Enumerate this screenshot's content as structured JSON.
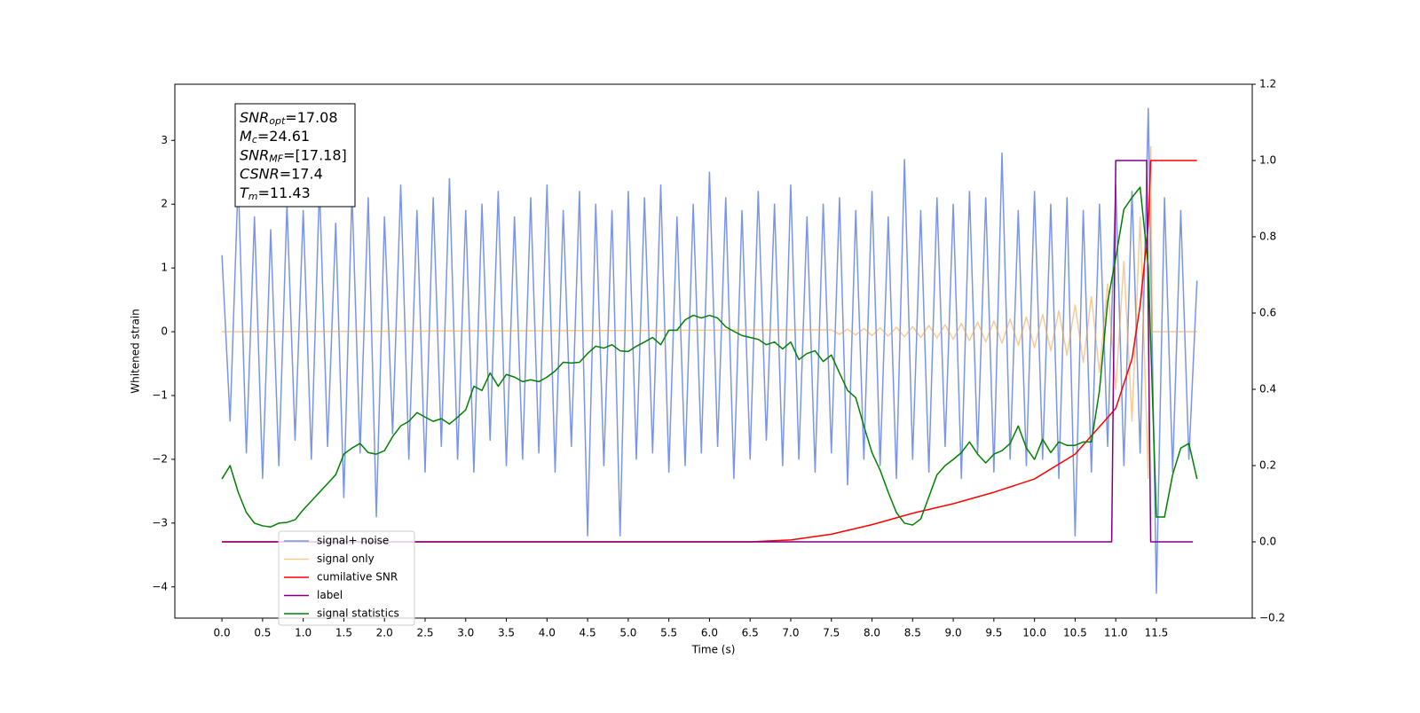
{
  "chart_data": {
    "type": "line",
    "xlabel": "Time (s)",
    "ylabel": "Whitened strain",
    "xlim": [
      -0.58,
      12.68
    ],
    "ylim": [
      -4.49,
      3.88
    ],
    "y2lim": [
      -0.2,
      1.2
    ],
    "xticks": [
      {
        "value": 0,
        "label": "0.0"
      },
      0.5,
      {
        "value": 1,
        "label": "1.0"
      },
      1.5,
      {
        "value": 2,
        "label": "2.0"
      },
      2.5,
      {
        "value": 3,
        "label": "3.0"
      },
      3.5,
      {
        "value": 4,
        "label": "4.0"
      },
      4.5,
      {
        "value": 5,
        "label": "5.0"
      },
      5.5,
      {
        "value": 6,
        "label": "6.0"
      },
      6.5,
      {
        "value": 7,
        "label": "7.0"
      },
      7.5,
      {
        "value": 8,
        "label": "8.0"
      },
      8.5,
      {
        "value": 9,
        "label": "9.0"
      },
      9.5,
      {
        "value": 10,
        "label": "10.0"
      },
      10.5,
      {
        "value": 11,
        "label": "11.0"
      },
      11.5
    ],
    "yticks": [
      {
        "value": -4,
        "label": "−4"
      },
      {
        "value": -3,
        "label": "−3"
      },
      {
        "value": -2,
        "label": "−2"
      },
      {
        "value": -1,
        "label": "−1"
      },
      0,
      1,
      2,
      3
    ],
    "y2ticks": [
      {
        "value": -0.2,
        "label": "−0.2"
      },
      {
        "value": 0,
        "label": "0.0"
      },
      0.2,
      0.4,
      0.6,
      0.8,
      {
        "value": 1,
        "label": "1.0"
      },
      1.2
    ],
    "annotation": [
      {
        "symbol": "SNR",
        "subscript": "opt",
        "value": "=17.08"
      },
      {
        "symbol": "M",
        "subscript": "c",
        "value": "=24.61"
      },
      {
        "symbol": "SNR",
        "subscript": "MF",
        "value": "=[17.18]"
      },
      {
        "symbol": "CSNR",
        "value": "=17.4"
      },
      {
        "symbol": "T",
        "subscript": "m",
        "value": "=11.43"
      }
    ],
    "legend": "lower left",
    "x": [
      0,
      0.1,
      0.2,
      0.3,
      0.4,
      0.5,
      0.6,
      0.7,
      0.8,
      0.9,
      1,
      1.1,
      1.2,
      1.3,
      1.4,
      1.5,
      1.6,
      1.7,
      1.8,
      1.9,
      2,
      2.1,
      2.2,
      2.3,
      2.4,
      2.5,
      2.6,
      2.7,
      2.8,
      2.9,
      3,
      3.1,
      3.2,
      3.3,
      3.4,
      3.5,
      3.6,
      3.7,
      3.8,
      3.9,
      4,
      4.1,
      4.2,
      4.3,
      4.4,
      4.5,
      4.6,
      4.7,
      4.8,
      4.9,
      5,
      5.1,
      5.2,
      5.3,
      5.4,
      5.5,
      5.6,
      5.7,
      5.8,
      5.9,
      6,
      6.1,
      6.2,
      6.3,
      6.4,
      6.5,
      6.6,
      6.7,
      6.8,
      6.9,
      7,
      7.1,
      7.2,
      7.3,
      7.4,
      7.5,
      7.6,
      7.7,
      7.8,
      7.9,
      8,
      8.1,
      8.2,
      8.3,
      8.4,
      8.5,
      8.6,
      8.7,
      8.8,
      8.9,
      9,
      9.1,
      9.2,
      9.3,
      9.4,
      9.5,
      9.6,
      9.7,
      9.8,
      9.9,
      10,
      10.1,
      10.2,
      10.3,
      10.4,
      10.5,
      10.6,
      10.7,
      10.8,
      10.9,
      11,
      11.1,
      11.2,
      11.3,
      11.4,
      11.5,
      11.6,
      11.7,
      11.8,
      11.9,
      12
    ],
    "series": [
      {
        "name": "signal+ noise",
        "color": "#7a95e8",
        "axis": "y",
        "values": [
          1.2,
          -1.4,
          2.4,
          -1.9,
          1.8,
          -2.3,
          1.6,
          -2.1,
          2.0,
          -1.7,
          1.9,
          -2.0,
          2.3,
          -1.8,
          1.7,
          -2.6,
          2.2,
          -1.9,
          2.1,
          -2.9,
          1.8,
          -1.6,
          2.3,
          -2.0,
          1.9,
          -2.2,
          2.1,
          -1.8,
          2.4,
          -2.0,
          1.9,
          -2.2,
          2.0,
          -1.7,
          2.2,
          -2.1,
          1.8,
          -2.0,
          2.1,
          -1.9,
          2.3,
          -2.2,
          1.9,
          -1.8,
          2.2,
          -3.2,
          2.0,
          -2.1,
          1.9,
          -3.2,
          2.2,
          -2.0,
          2.1,
          -1.9,
          2.3,
          -2.2,
          1.8,
          -2.1,
          2.0,
          -1.9,
          2.5,
          -1.8,
          2.1,
          -2.3,
          1.9,
          -2.0,
          2.2,
          -1.7,
          2.0,
          -2.1,
          2.3,
          -2.0,
          1.8,
          -2.2,
          2.0,
          -1.9,
          2.1,
          -2.4,
          1.9,
          -2.0,
          2.2,
          -2.1,
          1.8,
          -2.3,
          2.7,
          -2.0,
          1.9,
          -2.2,
          2.1,
          -1.8,
          2.0,
          -2.3,
          2.2,
          -1.9,
          2.1,
          -2.2,
          2.8,
          -2.0,
          1.9,
          -2.1,
          2.2,
          -2.0,
          2.0,
          -2.3,
          2.1,
          -3.2,
          1.9,
          -2.2,
          2.0,
          -1.8,
          2.3,
          -2.1,
          2.2,
          -1.9,
          3.5,
          -4.1,
          2.1,
          -2.2,
          1.9,
          -2.0,
          0.8
        ]
      },
      {
        "name": "signal only",
        "color": "#f0a040",
        "axis": "y",
        "alpha": 0.55,
        "x": [
          0,
          7.5,
          7.6,
          7.7,
          7.8,
          7.9,
          8,
          8.1,
          8.2,
          8.3,
          8.4,
          8.5,
          8.6,
          8.7,
          8.8,
          8.9,
          9,
          9.1,
          9.2,
          9.3,
          9.4,
          9.5,
          9.6,
          9.7,
          9.8,
          9.9,
          10,
          10.1,
          10.2,
          10.3,
          10.4,
          10.5,
          10.6,
          10.7,
          10.8,
          10.9,
          11,
          11.1,
          11.2,
          11.3,
          11.4,
          11.43,
          11.45,
          12
        ],
        "values": [
          0,
          0.03,
          -0.04,
          0.04,
          -0.05,
          0.05,
          -0.06,
          0.06,
          -0.07,
          0.07,
          -0.08,
          0.08,
          -0.09,
          0.1,
          -0.1,
          0.11,
          -0.12,
          0.13,
          -0.14,
          0.15,
          -0.16,
          0.17,
          -0.18,
          0.2,
          -0.21,
          0.23,
          -0.25,
          0.27,
          -0.3,
          0.33,
          -0.37,
          0.42,
          -0.48,
          0.55,
          -0.64,
          0.75,
          -0.9,
          1.1,
          -1.4,
          1.8,
          -2.3,
          2.9,
          0,
          0
        ]
      },
      {
        "name": "cumilative SNR",
        "color": "#ff0000",
        "axis": "y2",
        "x": [
          0,
          6.5,
          7,
          7.5,
          8,
          8.5,
          9,
          9.5,
          10,
          10.5,
          11,
          11.2,
          11.3,
          11.4,
          11.43,
          12
        ],
        "values": [
          0,
          0,
          0.005,
          0.02,
          0.045,
          0.075,
          0.1,
          0.13,
          0.165,
          0.23,
          0.35,
          0.48,
          0.62,
          0.83,
          1.0,
          1.0
        ]
      },
      {
        "name": "label",
        "color": "#800080",
        "axis": "y2",
        "x": [
          0,
          10.95,
          11,
          11.38,
          11.43,
          11.95
        ],
        "values": [
          0,
          0,
          1.0,
          1.0,
          0,
          0
        ]
      },
      {
        "name": "signal statistics",
        "color": "#008000",
        "axis": "y2",
        "values": [
          0.165,
          0.2,
          0.13,
          0.077,
          0.049,
          0.042,
          0.039,
          0.049,
          0.051,
          0.058,
          0.084,
          0.107,
          0.13,
          0.153,
          0.176,
          0.23,
          0.246,
          0.258,
          0.234,
          0.23,
          0.239,
          0.276,
          0.304,
          0.316,
          0.339,
          0.327,
          0.316,
          0.323,
          0.309,
          0.327,
          0.346,
          0.408,
          0.397,
          0.443,
          0.408,
          0.439,
          0.432,
          0.42,
          0.425,
          0.42,
          0.432,
          0.448,
          0.471,
          0.469,
          0.471,
          0.494,
          0.513,
          0.508,
          0.517,
          0.501,
          0.499,
          0.513,
          0.524,
          0.536,
          0.517,
          0.555,
          0.555,
          0.582,
          0.594,
          0.587,
          0.594,
          0.587,
          0.564,
          0.552,
          0.541,
          0.536,
          0.531,
          0.517,
          0.524,
          0.506,
          0.524,
          0.478,
          0.494,
          0.501,
          0.473,
          0.49,
          0.443,
          0.397,
          0.378,
          0.304,
          0.234,
          0.188,
          0.13,
          0.077,
          0.049,
          0.044,
          0.06,
          0.118,
          0.176,
          0.2,
          0.216,
          0.234,
          0.262,
          0.23,
          0.207,
          0.23,
          0.239,
          0.258,
          0.304,
          0.246,
          0.216,
          0.269,
          0.234,
          0.262,
          0.253,
          0.253,
          0.262,
          0.262,
          0.397,
          0.629,
          0.745,
          0.872,
          0.903,
          0.93,
          0.722,
          0.065,
          0.065,
          0.176,
          0.246,
          0.258,
          0.165
        ]
      }
    ]
  }
}
